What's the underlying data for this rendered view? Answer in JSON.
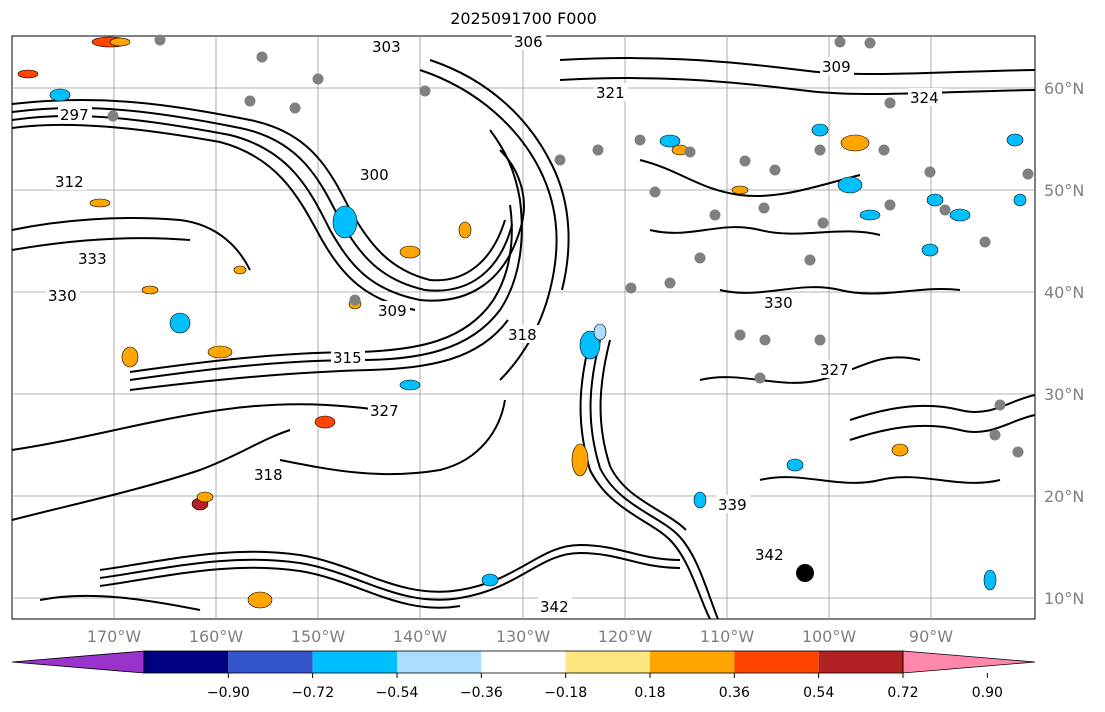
{
  "title": "2025091700 F000",
  "map": {
    "lon_labels": [
      "170°W",
      "160°W",
      "150°W",
      "140°W",
      "130°W",
      "120°W",
      "110°W",
      "100°W",
      "90°W"
    ],
    "lat_labels": [
      "60°N",
      "50°N",
      "40°N",
      "30°N",
      "20°N",
      "10°N"
    ],
    "contour_labels": [
      "303",
      "306",
      "309",
      "321",
      "297",
      "312",
      "300",
      "309",
      "318",
      "315",
      "327",
      "318",
      "330",
      "327",
      "339",
      "342",
      "342",
      "324",
      "333",
      "330"
    ]
  },
  "colorbar": {
    "levels": [
      "−0.90",
      "−0.72",
      "−0.54",
      "−0.36",
      "−0.18",
      "0.18",
      "0.36",
      "0.54",
      "0.72",
      "0.90"
    ],
    "colors": [
      "#9933cc",
      "#000080",
      "#3355cc",
      "#00bfff",
      "#aaddff",
      "#ffffff",
      "#ffe680",
      "#ffa500",
      "#ff4500",
      "#b22222",
      "#ff88aa"
    ]
  }
}
